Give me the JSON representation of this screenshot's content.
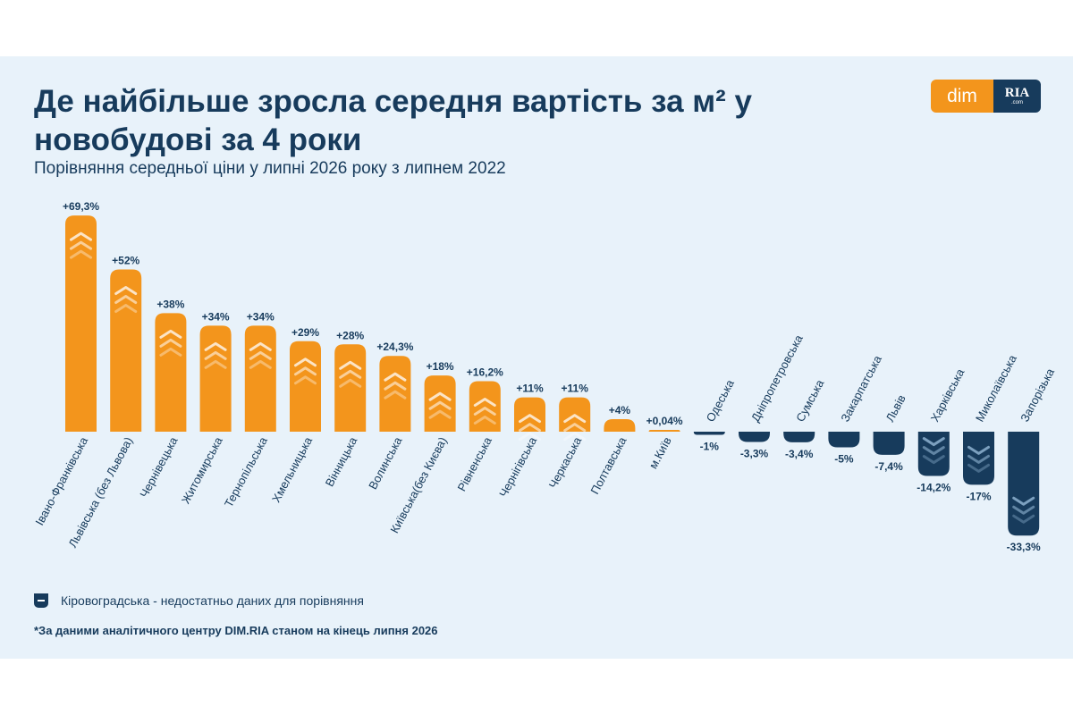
{
  "header": {
    "title": "Де найбільше зросла середня вартість за м² у новобудові за 4 роки",
    "subtitle": "Порівняння середньої ціни у липні 2026 року з липнем 2022"
  },
  "logo": {
    "left": "dim",
    "right": "RIA",
    "right_small": ".com"
  },
  "colors": {
    "positive": "#f3951c",
    "negative": "#173b5c",
    "text": "#173b5c",
    "background": "#e8f2fa"
  },
  "legend": {
    "text": "Кіровоградська - недостатньо даних для порівняння",
    "icon": "minus-badge-icon"
  },
  "footnote": "*За даними аналітичного центру DIM.RIA станом на кінець липня 2026",
  "chart_data": {
    "type": "bar",
    "unit": "%",
    "categories": [
      "Івано-Франківська",
      "Львівська (без Львова)",
      "Чернівецька",
      "Житомирська",
      "Тернопільська",
      "Хмельницька",
      "Вінницька",
      "Волинська",
      "Київська(без Києва)",
      "Рівненська",
      "Чернігівська",
      "Черкаська",
      "Полтавська",
      "м.Київ",
      "Одеська",
      "Дніпропетровська",
      "Сумська",
      "Закарпатська",
      "Львів",
      "Харківська",
      "Миколаївська",
      "Запорізька"
    ],
    "values": [
      69.3,
      52,
      38,
      34,
      34,
      29,
      28,
      24.3,
      18,
      16.2,
      11,
      11,
      4,
      0.04,
      -1,
      -3.3,
      -3.4,
      -5,
      -7.4,
      -14.2,
      -17,
      -33.3
    ],
    "labels": [
      "+69,3%",
      "+52%",
      "+38%",
      "+34%",
      "+34%",
      "+29%",
      "+28%",
      "+24,3%",
      "+18%",
      "+16,2%",
      "+11%",
      "+11%",
      "+4%",
      "+0,04%",
      "-1%",
      "-3,3%",
      "-3,4%",
      "-5%",
      "-7,4%",
      "-14,2%",
      "-17%",
      "-33,3%"
    ]
  }
}
